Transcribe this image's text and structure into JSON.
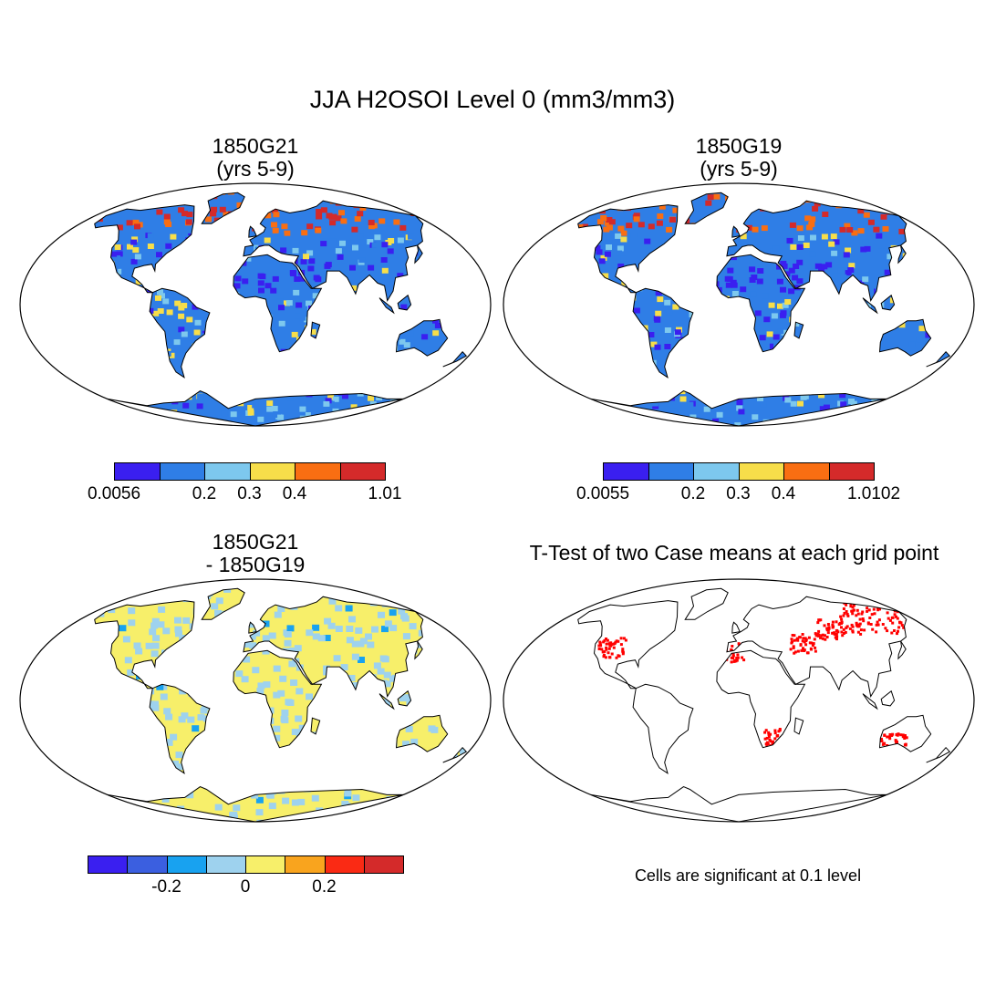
{
  "title": "JJA H2OSOI Level 0 (mm3/mm3)",
  "panels": [
    {
      "title_line1": "1850G21",
      "title_line2": "(yrs 5-9)",
      "type": "field"
    },
    {
      "title_line1": "1850G19",
      "title_line2": "(yrs 5-9)",
      "type": "field"
    },
    {
      "title_line1": "1850G21",
      "title_line2": "- 1850G19",
      "type": "difference"
    },
    {
      "title_line1": "T-Test of two Case means at each grid point",
      "type": "significance"
    }
  ],
  "colorbars": [
    {
      "colors": [
        "#3a1ff0",
        "#2f7ee6",
        "#7dc8ee",
        "#f7de4a",
        "#f96e12",
        "#d42a2a"
      ],
      "labels": [
        "0.0056",
        "0.2",
        "0.3",
        "0.4",
        "1.01"
      ]
    },
    {
      "colors": [
        "#3a1ff0",
        "#2f7ee6",
        "#7dc8ee",
        "#f7de4a",
        "#f96e12",
        "#d42a2a"
      ],
      "labels": [
        "0.0055",
        "0.2",
        "0.3",
        "0.4",
        "1.0102"
      ]
    },
    {
      "colors": [
        "#3a1ff0",
        "#3b5fe0",
        "#18a2f0",
        "#9ed2ee",
        "#f7ef6a",
        "#f9a41e",
        "#fa2a14",
        "#d42a2a"
      ],
      "labels": [
        "-0.2",
        "0",
        "0.2"
      ]
    }
  ],
  "significance_note": "Cells are significant at 0.1 level",
  "significance_color": "#ff0000"
}
